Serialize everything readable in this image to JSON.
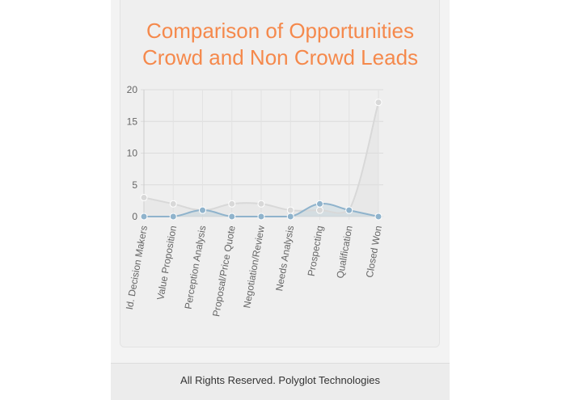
{
  "chart_data": {
    "type": "line",
    "title_lines": [
      "Comparison of Opportunities",
      "Crowd and Non Crowd Leads"
    ],
    "categories": [
      "Id. Decision Makers",
      "Value Proposition",
      "Perception Analysis",
      "Proposal/Price Quote",
      "Negotiation/Review",
      "Needs Analysis",
      "Prospecting",
      "Qualification",
      "Closed Won"
    ],
    "series": [
      {
        "values": [
          3,
          2,
          1,
          2,
          2,
          1,
          1,
          1,
          18
        ],
        "color": "#d8d8d8",
        "fill": "rgba(220,220,220,0.35)"
      },
      {
        "values": [
          0,
          0,
          1,
          0,
          0,
          0,
          2,
          1,
          0
        ],
        "color": "#8fb3cc",
        "fill": "rgba(151,187,205,0.25)"
      }
    ],
    "ylim": [
      0,
      20
    ],
    "yticks": [
      0,
      5,
      10,
      15,
      20
    ],
    "grid": true,
    "legend": "none"
  },
  "footer": {
    "text": "All Rights Reserved. Polyglot Technologies"
  }
}
